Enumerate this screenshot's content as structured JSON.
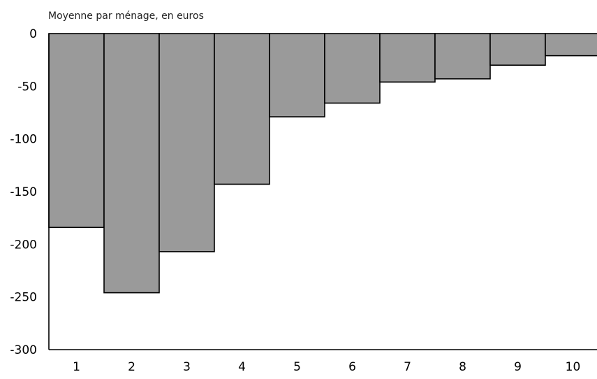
{
  "chart_data": {
    "type": "bar",
    "ylabel": "Moyenne par ménage, en euros",
    "categories": [
      "1",
      "2",
      "3",
      "4",
      "5",
      "6",
      "7",
      "8",
      "9",
      "10"
    ],
    "values": [
      -184,
      -246,
      -207,
      -143,
      -79,
      -66,
      -46,
      -43,
      -30,
      -21
    ],
    "ylim": [
      -300,
      0
    ],
    "yticks": [
      "0",
      "-50",
      "-100",
      "-150",
      "-200",
      "-250",
      "-300"
    ],
    "grid": false,
    "bar_color": "#9a9a9a",
    "edge_color": "#000000"
  }
}
